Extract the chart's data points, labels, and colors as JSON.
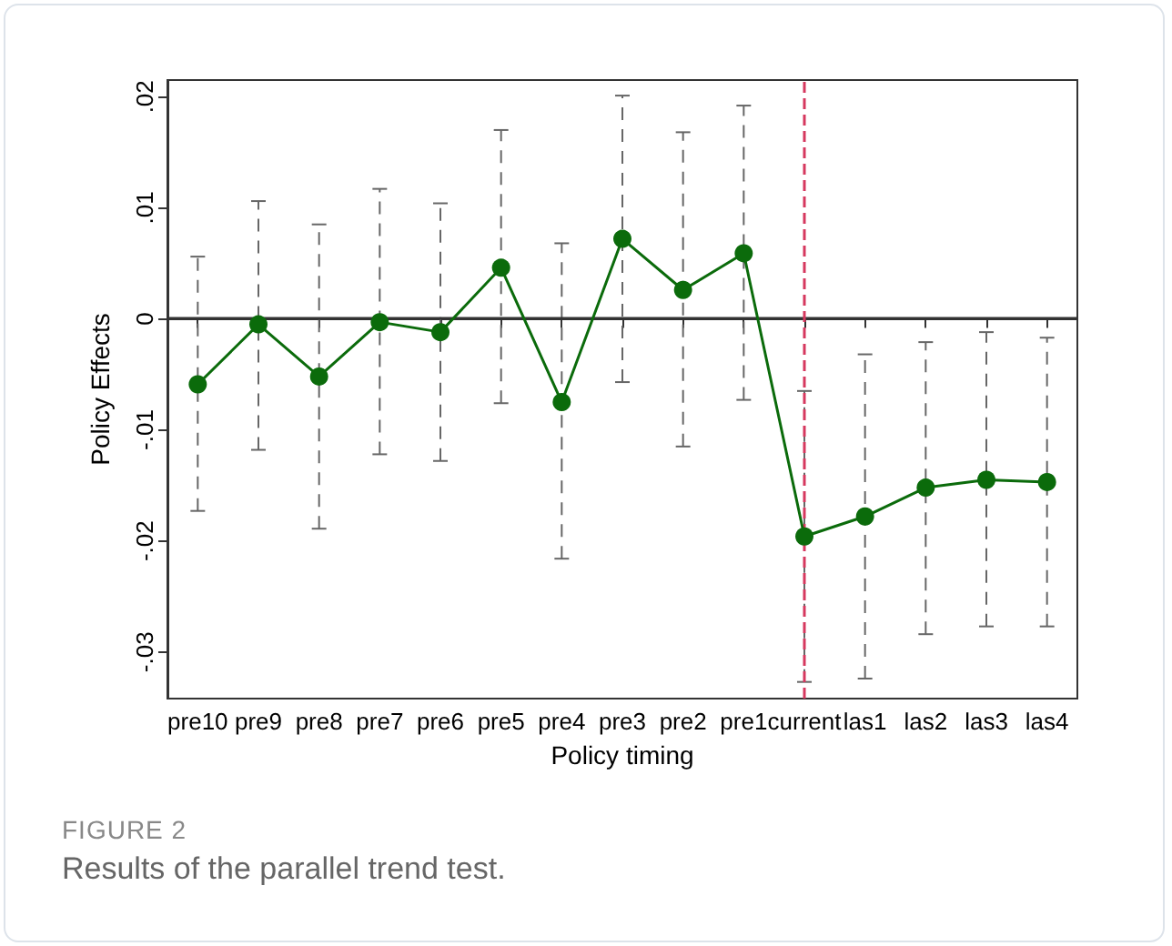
{
  "chart_data": {
    "type": "line",
    "xlabel": "Policy timing",
    "ylabel": "Policy Effects",
    "categories": [
      "pre10",
      "pre9",
      "pre8",
      "pre7",
      "pre6",
      "pre5",
      "pre4",
      "pre3",
      "pre2",
      "pre1",
      "current",
      "las1",
      "las2",
      "las3",
      "las4"
    ],
    "series": [
      {
        "color": "#0b6b0b",
        "values": [
          -0.0059,
          -0.0005,
          -0.0052,
          -0.0003,
          -0.0012,
          0.0046,
          -0.0075,
          0.0072,
          0.0026,
          0.0059,
          -0.0196,
          -0.0178,
          -0.0152,
          -0.0145,
          -0.0147
        ],
        "errors": [
          [
            -0.0173,
            0.0056
          ],
          [
            -0.0118,
            0.0106
          ],
          [
            -0.0189,
            0.0085
          ],
          [
            -0.0122,
            0.0117
          ],
          [
            -0.0128,
            0.0104
          ],
          [
            -0.0076,
            0.017
          ],
          [
            -0.0216,
            0.0068
          ],
          [
            -0.0057,
            0.0201
          ],
          [
            -0.0115,
            0.0168
          ],
          [
            -0.0073,
            0.0192
          ],
          [
            -0.0327,
            -0.0065
          ],
          [
            -0.0324,
            -0.0032
          ],
          [
            -0.0284,
            -0.0021
          ],
          [
            -0.0277,
            -0.0012
          ],
          [
            -0.0277,
            -0.0017
          ]
        ]
      }
    ],
    "ylim": [
      -0.0342,
      0.0215
    ],
    "yticks": [
      {
        "value": -0.03,
        "label": "-.03"
      },
      {
        "value": -0.02,
        "label": "-.02"
      },
      {
        "value": -0.01,
        "label": "-.01"
      },
      0,
      {
        "value": 0.01,
        "label": ".01"
      },
      {
        "value": 0.02,
        "label": ".02"
      }
    ],
    "ref_lines": [
      {
        "axis": "y",
        "value": 0,
        "color": "#333333",
        "line_style": "solid"
      },
      {
        "axis": "x",
        "value": "current",
        "color": "#d6385f",
        "line_style": "dashed"
      }
    ],
    "annotations": [
      "FIGURE 2",
      "Results of the parallel trend test."
    ],
    "grid": false,
    "marker": "circle",
    "line_style": "solid"
  }
}
